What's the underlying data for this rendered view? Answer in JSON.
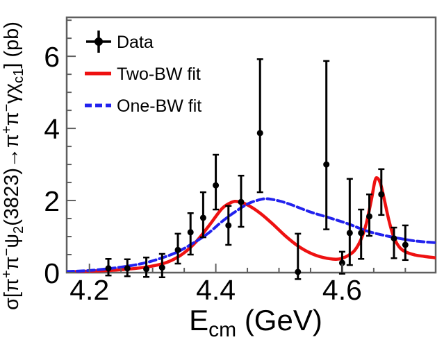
{
  "colors": {
    "background": "#ffffff",
    "frame": "#5f5f5f",
    "text": "#000000",
    "data": "#000000",
    "two_bw": "#ee1111",
    "one_bw": "#2222ee"
  },
  "legend": {
    "items": [
      {
        "label": "Data",
        "type": "data-marker",
        "color": "#000000"
      },
      {
        "label": "Two-BW fit",
        "type": "solid-line",
        "color": "#ee1111"
      },
      {
        "label": "One-BW fit",
        "type": "dashed-line",
        "color": "#2222ee"
      }
    ]
  },
  "chart_data": {
    "type": "scatter",
    "title": "",
    "xlabel": "E_cm (GeV)",
    "ylabel": "sigma[pi+ pi- psi2(3823) -> pi+ pi- gamma chi_c1] (pb)",
    "xlabel_segments": [
      {
        "t": "E"
      },
      {
        "t": "cm",
        "pos": "sub"
      },
      {
        "t": " (GeV)"
      }
    ],
    "ylabel_segments": [
      {
        "t": "σ[π"
      },
      {
        "t": "+",
        "pos": "sup"
      },
      {
        "t": "π"
      },
      {
        "t": "−",
        "pos": "sup"
      },
      {
        "t": "ψ"
      },
      {
        "t": "2",
        "pos": "sub"
      },
      {
        "t": "(3823)→π"
      },
      {
        "t": "+",
        "pos": "sup"
      },
      {
        "t": "π"
      },
      {
        "t": "−",
        "pos": "sup"
      },
      {
        "t": "γχ"
      },
      {
        "t": "c1",
        "pos": "sub"
      },
      {
        "t": "] (pb)"
      }
    ],
    "xlim": [
      4.164,
      4.748
    ],
    "ylim": [
      0,
      7.08
    ],
    "grid": false,
    "legend_position": "top-left",
    "x_major_ticks": [
      4.2,
      4.4,
      4.6
    ],
    "x_tick_labels": [
      "4.2",
      "4.4",
      "4.6"
    ],
    "x_minor_ticks": [
      4.25,
      4.3,
      4.35,
      4.45,
      4.5,
      4.55,
      4.65,
      4.7
    ],
    "y_major_ticks": [
      0,
      2,
      4,
      6
    ],
    "y_tick_labels": [
      "0",
      "2",
      "4",
      "6"
    ],
    "y_minor_ticks": [
      0.5,
      1.0,
      1.5,
      2.5,
      3.0,
      3.5,
      4.5,
      5.0,
      5.5,
      6.5,
      7.0
    ],
    "data_points": [
      {
        "x": 4.23,
        "y": 0.12,
        "ey_hi": 0.26,
        "ey_lo": 0.2
      },
      {
        "x": 4.26,
        "y": 0.12,
        "ey_hi": 0.25,
        "ey_lo": 0.22
      },
      {
        "x": 4.29,
        "y": 0.1,
        "ey_hi": 0.32,
        "ey_lo": 0.22
      },
      {
        "x": 4.315,
        "y": 0.14,
        "ey_hi": 0.38,
        "ey_lo": 0.27
      },
      {
        "x": 4.34,
        "y": 0.63,
        "ey_hi": 0.45,
        "ey_lo": 0.38
      },
      {
        "x": 4.36,
        "y": 1.12,
        "ey_hi": 0.53,
        "ey_lo": 0.62
      },
      {
        "x": 4.38,
        "y": 1.52,
        "ey_hi": 0.71,
        "ey_lo": 0.54
      },
      {
        "x": 4.4,
        "y": 2.42,
        "ey_hi": 0.85,
        "ey_lo": 0.67
      },
      {
        "x": 4.42,
        "y": 1.31,
        "ey_hi": 0.54,
        "ey_lo": 0.54
      },
      {
        "x": 4.44,
        "y": 1.96,
        "ey_hi": 0.73,
        "ey_lo": 0.69
      },
      {
        "x": 4.47,
        "y": 3.87,
        "ey_hi": 2.05,
        "ey_lo": 1.64
      },
      {
        "x": 4.53,
        "y": 0.02,
        "ey_hi": 1.06,
        "ey_lo": 0.2
      },
      {
        "x": 4.575,
        "y": 3.0,
        "ey_hi": 2.87,
        "ey_lo": 1.8
      },
      {
        "x": 4.6,
        "y": 0.27,
        "ey_hi": 0.31,
        "ey_lo": 0.3
      },
      {
        "x": 4.612,
        "y": 1.1,
        "ey_hi": 1.5,
        "ey_lo": 0.89
      },
      {
        "x": 4.63,
        "y": 1.1,
        "ey_hi": 0.65,
        "ey_lo": 0.72
      },
      {
        "x": 4.643,
        "y": 1.56,
        "ey_hi": 0.61,
        "ey_lo": 0.54
      },
      {
        "x": 4.662,
        "y": 2.17,
        "ey_hi": 0.7,
        "ey_lo": 0.57
      },
      {
        "x": 4.682,
        "y": 0.95,
        "ey_hi": 0.3,
        "ey_lo": 0.55
      },
      {
        "x": 4.7,
        "y": 0.77,
        "ey_hi": 0.54,
        "ey_lo": 0.42
      }
    ],
    "fit_curves": [
      {
        "name": "Two-BW fit",
        "style": "solid",
        "color": "#ee1111",
        "points": [
          [
            4.164,
            0.02
          ],
          [
            4.2,
            0.04
          ],
          [
            4.24,
            0.07
          ],
          [
            4.28,
            0.13
          ],
          [
            4.31,
            0.22
          ],
          [
            4.33,
            0.34
          ],
          [
            4.35,
            0.55
          ],
          [
            4.37,
            0.88
          ],
          [
            4.39,
            1.32
          ],
          [
            4.41,
            1.78
          ],
          [
            4.425,
            1.95
          ],
          [
            4.435,
            1.97
          ],
          [
            4.45,
            1.88
          ],
          [
            4.47,
            1.65
          ],
          [
            4.49,
            1.35
          ],
          [
            4.51,
            1.02
          ],
          [
            4.53,
            0.74
          ],
          [
            4.55,
            0.54
          ],
          [
            4.57,
            0.42
          ],
          [
            4.59,
            0.37
          ],
          [
            4.6,
            0.4
          ],
          [
            4.61,
            0.48
          ],
          [
            4.62,
            0.62
          ],
          [
            4.63,
            0.93
          ],
          [
            4.638,
            1.35
          ],
          [
            4.646,
            2.0
          ],
          [
            4.652,
            2.55
          ],
          [
            4.656,
            2.62
          ],
          [
            4.661,
            2.45
          ],
          [
            4.667,
            2.0
          ],
          [
            4.674,
            1.45
          ],
          [
            4.681,
            1.02
          ],
          [
            4.69,
            0.72
          ],
          [
            4.7,
            0.58
          ],
          [
            4.715,
            0.49
          ],
          [
            4.73,
            0.45
          ],
          [
            4.748,
            0.41
          ]
        ]
      },
      {
        "name": "One-BW fit",
        "style": "dashed",
        "color": "#2222ee",
        "points": [
          [
            4.164,
            0.03
          ],
          [
            4.2,
            0.06
          ],
          [
            4.24,
            0.13
          ],
          [
            4.28,
            0.24
          ],
          [
            4.31,
            0.38
          ],
          [
            4.34,
            0.58
          ],
          [
            4.37,
            0.88
          ],
          [
            4.39,
            1.12
          ],
          [
            4.41,
            1.42
          ],
          [
            4.43,
            1.68
          ],
          [
            4.45,
            1.9
          ],
          [
            4.465,
            2.0
          ],
          [
            4.48,
            2.05
          ],
          [
            4.5,
            1.99
          ],
          [
            4.52,
            1.88
          ],
          [
            4.55,
            1.68
          ],
          [
            4.58,
            1.52
          ],
          [
            4.61,
            1.35
          ],
          [
            4.64,
            1.15
          ],
          [
            4.67,
            1.02
          ],
          [
            4.7,
            0.92
          ],
          [
            4.72,
            0.87
          ],
          [
            4.748,
            0.83
          ]
        ]
      }
    ]
  }
}
